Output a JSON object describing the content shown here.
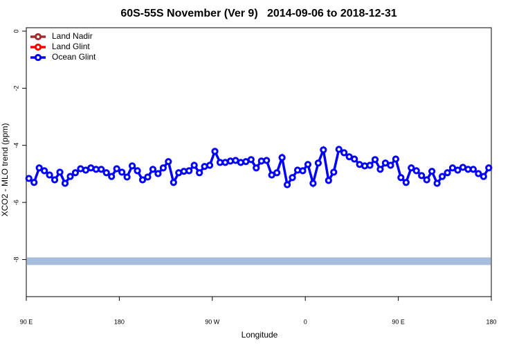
{
  "chart_data": {
    "type": "line",
    "title": "60S-55S November (Ver 9)   2014-09-06 to 2018-12-31",
    "x_label": "Longitude",
    "y_label": "XCO2 - MLO trend (ppm)",
    "xlim": [
      90,
      540
    ],
    "ylim": [
      -9.3,
      0.12
    ],
    "xticks": [
      {
        "value": 90,
        "label": "90 E"
      },
      {
        "value": 180,
        "label": "180"
      },
      {
        "value": 270,
        "label": "90 W"
      },
      {
        "value": 360,
        "label": "0"
      },
      {
        "value": 450,
        "label": "90 E"
      },
      {
        "value": 540,
        "label": "180"
      }
    ],
    "yticks": [
      0,
      -2,
      -4,
      -6,
      -8
    ],
    "legend": "top-left",
    "x": [
      92.5,
      97.5,
      102.5,
      107.5,
      112.5,
      117.5,
      122.5,
      127.5,
      132.5,
      137.5,
      142.5,
      147.5,
      152.5,
      157.5,
      162.5,
      167.5,
      172.5,
      177.5,
      182.5,
      187.5,
      192.5,
      197.5,
      202.5,
      207.5,
      212.5,
      217.5,
      222.5,
      227.5,
      232.5,
      237.5,
      242.5,
      247.5,
      252.5,
      257.5,
      262.5,
      267.5,
      272.5,
      277.5,
      282.5,
      287.5,
      292.5,
      297.5,
      302.5,
      307.5,
      312.5,
      317.5,
      322.5,
      327.5,
      332.5,
      337.5,
      342.5,
      347.5,
      352.5,
      357.5,
      362.5,
      367.5,
      372.5,
      377.5,
      382.5,
      387.5,
      392.5,
      397.5,
      402.5,
      407.5,
      412.5,
      417.5,
      422.5,
      427.5,
      432.5,
      437.5,
      442.5,
      447.5,
      452.5,
      457.5,
      462.5,
      467.5,
      472.5,
      477.5,
      482.5,
      487.5,
      492.5,
      497.5,
      502.5,
      507.5,
      512.5,
      517.5,
      522.5,
      527.5,
      532.5,
      537.5
    ],
    "series": [
      {
        "name": "Land Nadir",
        "color": "#a52a2a",
        "values": [
          null,
          null,
          null,
          null,
          null,
          null,
          null,
          null,
          null,
          null,
          null,
          null,
          null,
          null,
          null,
          null,
          null,
          null,
          null,
          null,
          null,
          null,
          null,
          null,
          null,
          null,
          null,
          null,
          null,
          null,
          null,
          null,
          null,
          null,
          null,
          null,
          null,
          null,
          null,
          null,
          null,
          null,
          null,
          null,
          null,
          null,
          null,
          null,
          null,
          null,
          null,
          null,
          null,
          null,
          null,
          null,
          null,
          null,
          null,
          null,
          null,
          null,
          null,
          null,
          null,
          null,
          null,
          null,
          null,
          null,
          null,
          null,
          null,
          null,
          null,
          null,
          null,
          null,
          null,
          null,
          null,
          null,
          null,
          null,
          null,
          null,
          null,
          null,
          null,
          null
        ]
      },
      {
        "name": "Land Glint",
        "color": "#ff0000",
        "values": [
          null,
          null,
          null,
          null,
          null,
          null,
          null,
          null,
          null,
          null,
          null,
          null,
          null,
          null,
          null,
          null,
          null,
          null,
          null,
          null,
          null,
          null,
          null,
          null,
          null,
          null,
          null,
          null,
          null,
          null,
          null,
          null,
          null,
          null,
          null,
          null,
          null,
          null,
          null,
          null,
          null,
          null,
          null,
          null,
          null,
          null,
          null,
          null,
          null,
          null,
          null,
          null,
          null,
          null,
          null,
          null,
          null,
          null,
          null,
          null,
          null,
          null,
          null,
          null,
          null,
          null,
          null,
          null,
          null,
          null,
          null,
          null,
          null,
          null,
          null,
          null,
          null,
          null,
          null,
          null,
          null,
          null,
          null,
          null,
          null,
          null,
          null,
          null,
          null,
          null
        ]
      },
      {
        "name": "Ocean Glint",
        "color": "#0000ff",
        "values": [
          -5.16,
          -5.3,
          -4.79,
          -4.89,
          -5.04,
          -5.21,
          -4.94,
          -5.33,
          -5.09,
          -4.96,
          -4.82,
          -4.87,
          -4.79,
          -4.84,
          -4.84,
          -4.96,
          -5.09,
          -4.82,
          -4.94,
          -5.11,
          -4.72,
          -4.89,
          -5.21,
          -5.11,
          -4.84,
          -4.99,
          -4.79,
          -4.57,
          -5.3,
          -4.96,
          -4.91,
          -4.89,
          -4.7,
          -4.96,
          -4.74,
          -4.7,
          -4.21,
          -4.6,
          -4.6,
          -4.55,
          -4.53,
          -4.6,
          -4.57,
          -4.5,
          -4.79,
          -4.55,
          -4.53,
          -5.04,
          -4.96,
          -4.43,
          -5.38,
          -5.13,
          -4.87,
          -4.89,
          -4.67,
          -5.33,
          -4.62,
          -4.16,
          -5.23,
          -4.94,
          -4.14,
          -4.26,
          -4.4,
          -4.48,
          -4.67,
          -4.72,
          -4.7,
          -4.5,
          -4.84,
          -4.62,
          -4.7,
          -4.48,
          -5.13,
          -5.3,
          -4.79,
          -4.89,
          -5.06,
          -5.21,
          -4.91,
          -5.33,
          -5.09,
          -4.96,
          -4.79,
          -4.87,
          -4.77,
          -4.84,
          -4.84,
          -4.99,
          -5.09,
          -4.79
        ]
      }
    ],
    "band": {
      "value": -8.06,
      "color": "#a6bddb"
    }
  }
}
